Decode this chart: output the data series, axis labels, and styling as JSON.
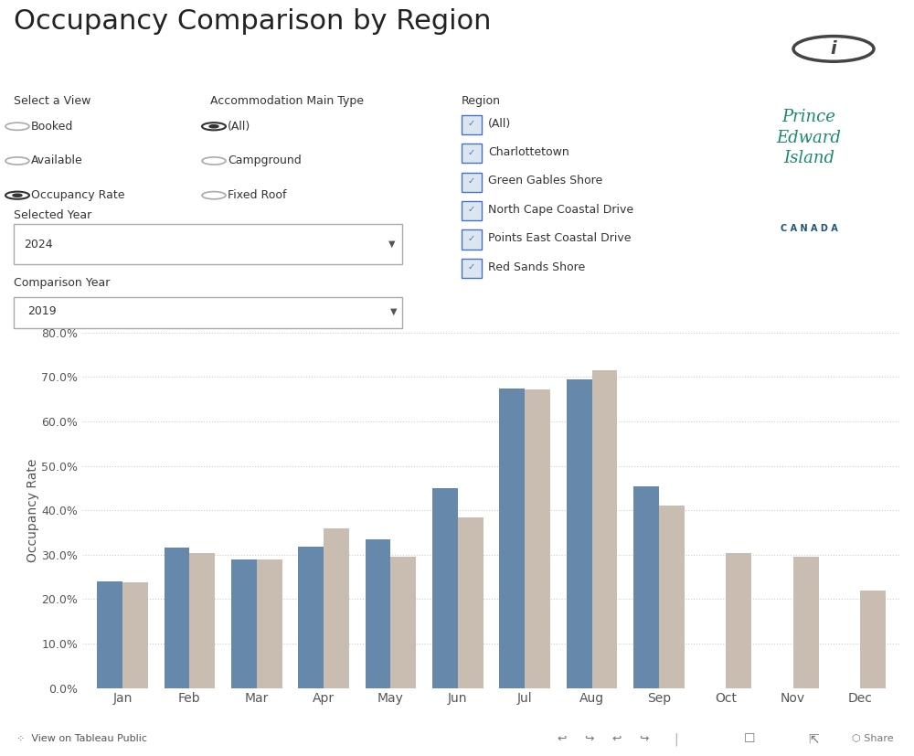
{
  "title": "Occupancy Comparison by Region",
  "months": [
    "Jan",
    "Feb",
    "Mar",
    "Apr",
    "May",
    "Jun",
    "Jul",
    "Aug",
    "Sep",
    "Oct",
    "Nov",
    "Dec"
  ],
  "selected_year": "2024",
  "comparison_year": "2019",
  "selected_values": [
    0.24,
    0.317,
    0.289,
    0.319,
    0.334,
    0.45,
    0.674,
    0.694,
    0.455,
    null,
    null,
    null
  ],
  "comparison_values": [
    0.238,
    0.303,
    0.29,
    0.359,
    0.295,
    0.383,
    0.673,
    0.716,
    0.41,
    0.304,
    0.295,
    0.22
  ],
  "bar_color_selected": "#6688aa",
  "bar_color_comparison": "#c8bdb0",
  "ylabel": "Occupancy Rate",
  "ylim": [
    0.0,
    0.8
  ],
  "yticks": [
    0.0,
    0.1,
    0.2,
    0.3,
    0.4,
    0.5,
    0.6,
    0.7,
    0.8
  ],
  "ytick_labels": [
    "0.0%",
    "10.0%",
    "20.0%",
    "30.0%",
    "40.0%",
    "50.0%",
    "60.0%",
    "70.0%",
    "80.0%"
  ],
  "background_color": "#ffffff",
  "bar_width": 0.38,
  "controls": {
    "select_a_view_label": "Select a View",
    "view_options": [
      "Booked",
      "Available",
      "Occupancy Rate"
    ],
    "view_selected": "Occupancy Rate",
    "accom_label": "Accommodation Main Type",
    "accom_options": [
      "(All)",
      "Campground",
      "Fixed Roof"
    ],
    "accom_selected": "(All)",
    "selected_year_label": "Selected Year",
    "selected_year_value": "2024",
    "comparison_year_label": "Comparison Year",
    "comparison_year_value": "2019",
    "region_label": "Region",
    "region_options": [
      "(All)",
      "Charlottetown",
      "Green Gables Shore",
      "North Cape Coastal Drive",
      "Points East Coastal Drive",
      "Red Sands Shore"
    ]
  },
  "info_icon": true,
  "pei_logo": true,
  "canada_text": "C A N A D A"
}
